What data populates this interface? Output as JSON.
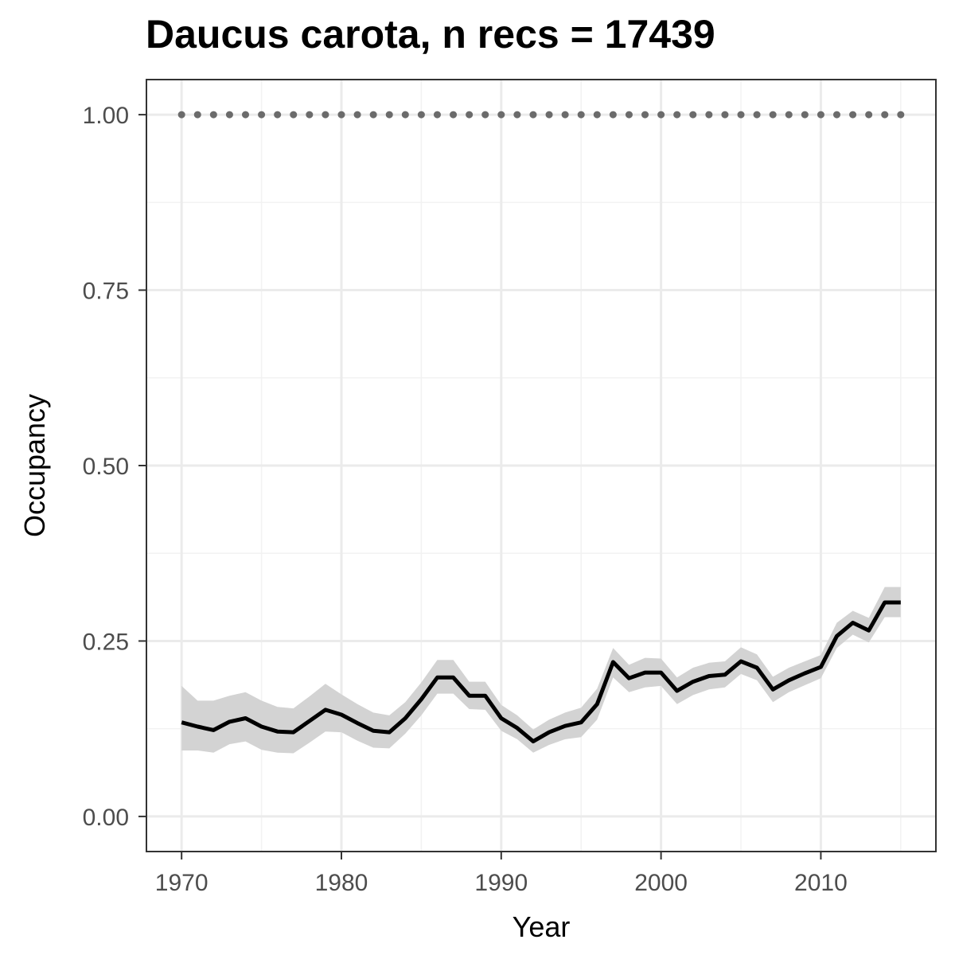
{
  "chart_data": {
    "type": "line",
    "title": "Daucus carota, n recs = 17439",
    "xlabel": "Year",
    "ylabel": "Occupancy",
    "xlim": [
      1967.8,
      2017.2
    ],
    "ylim": [
      -0.05,
      1.05
    ],
    "xticks": [
      1970,
      1980,
      1990,
      2000,
      2010
    ],
    "xtick_labels": [
      "1970",
      "1980",
      "1990",
      "2000",
      "2010"
    ],
    "yticks": [
      0,
      0.25,
      0.5,
      0.75,
      1.0
    ],
    "ytick_labels": [
      "0.00",
      "0.25",
      "0.50",
      "0.75",
      "1.00"
    ],
    "grid": true,
    "x": [
      1970,
      1971,
      1972,
      1973,
      1974,
      1975,
      1976,
      1977,
      1978,
      1979,
      1980,
      1981,
      1982,
      1983,
      1984,
      1985,
      1986,
      1987,
      1988,
      1989,
      1990,
      1991,
      1992,
      1993,
      1994,
      1995,
      1996,
      1997,
      1998,
      1999,
      2000,
      2001,
      2002,
      2003,
      2004,
      2005,
      2006,
      2007,
      2008,
      2009,
      2010,
      2011,
      2012,
      2013,
      2014,
      2015
    ],
    "series": [
      {
        "values": [
          0.134,
          0.128,
          0.123,
          0.135,
          0.14,
          0.128,
          0.121,
          0.12,
          0.136,
          0.152,
          0.145,
          0.133,
          0.122,
          0.12,
          0.14,
          0.167,
          0.198,
          0.198,
          0.172,
          0.172,
          0.14,
          0.126,
          0.107,
          0.12,
          0.129,
          0.134,
          0.16,
          0.22,
          0.197,
          0.205,
          0.205,
          0.179,
          0.192,
          0.2,
          0.202,
          0.221,
          0.212,
          0.181,
          0.194,
          0.204,
          0.213,
          0.257,
          0.276,
          0.265,
          0.305,
          0.305
        ],
        "lower": [
          0.094,
          0.094,
          0.091,
          0.103,
          0.107,
          0.095,
          0.091,
          0.09,
          0.105,
          0.121,
          0.12,
          0.108,
          0.098,
          0.097,
          0.118,
          0.144,
          0.175,
          0.175,
          0.153,
          0.152,
          0.122,
          0.11,
          0.091,
          0.102,
          0.11,
          0.113,
          0.138,
          0.198,
          0.177,
          0.184,
          0.186,
          0.16,
          0.173,
          0.181,
          0.184,
          0.203,
          0.194,
          0.163,
          0.177,
          0.187,
          0.197,
          0.24,
          0.259,
          0.248,
          0.284,
          0.284
        ],
        "upper": [
          0.186,
          0.165,
          0.165,
          0.172,
          0.177,
          0.165,
          0.156,
          0.154,
          0.171,
          0.189,
          0.174,
          0.16,
          0.148,
          0.144,
          0.163,
          0.191,
          0.223,
          0.223,
          0.192,
          0.192,
          0.159,
          0.144,
          0.124,
          0.138,
          0.148,
          0.155,
          0.182,
          0.24,
          0.216,
          0.226,
          0.225,
          0.198,
          0.212,
          0.219,
          0.221,
          0.241,
          0.231,
          0.199,
          0.212,
          0.221,
          0.23,
          0.276,
          0.293,
          0.283,
          0.327,
          0.327
        ],
        "color": "#000000",
        "ribbon_color": "#d3d3d3"
      },
      {
        "values": [
          1,
          1,
          1,
          1,
          1,
          1,
          1,
          1,
          1,
          1,
          1,
          1,
          1,
          1,
          1,
          1,
          1,
          1,
          1,
          1,
          1,
          1,
          1,
          1,
          1,
          1,
          1,
          1,
          1,
          1,
          1,
          1,
          1,
          1,
          1,
          1,
          1,
          1,
          1,
          1,
          1,
          1,
          1,
          1,
          1,
          1
        ],
        "color": "#6b6b6b",
        "style": "dotted"
      }
    ]
  }
}
